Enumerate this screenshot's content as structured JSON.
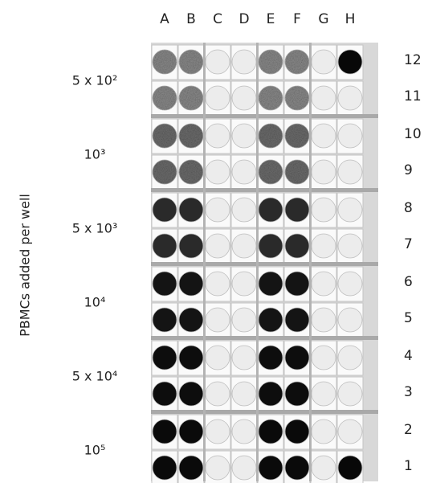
{
  "y_label": "PBMCs added per well",
  "columns": [
    "A",
    "B",
    "C",
    "D",
    "E",
    "F",
    "G",
    "H"
  ],
  "rows": [
    "12",
    "11",
    "10",
    "9",
    "8",
    "7",
    "6",
    "5",
    "4",
    "3",
    "2",
    "1"
  ],
  "groups": [
    "5 x 10²",
    "10³",
    "5 x 10³",
    "10⁴",
    "5 x 10⁴",
    "10⁵"
  ]
}
